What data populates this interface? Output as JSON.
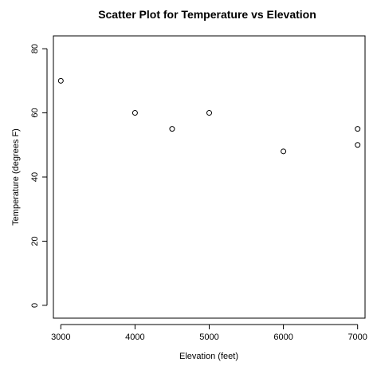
{
  "chart_data": {
    "type": "scatter",
    "title": "Scatter Plot for Temperature vs Elevation",
    "xlabel": "Elevation (feet)",
    "ylabel": "Temperature (degrees F)",
    "xlim": [
      2900,
      7100
    ],
    "ylim": [
      -4,
      84
    ],
    "xticks": [
      3000,
      4000,
      5000,
      6000,
      7000
    ],
    "yticks": [
      0,
      20,
      40,
      60,
      80
    ],
    "x": [
      3000,
      4000,
      4500,
      5000,
      6000,
      7000,
      7000
    ],
    "y": [
      70,
      60,
      55,
      60,
      48,
      55,
      50
    ],
    "grid": false
  }
}
